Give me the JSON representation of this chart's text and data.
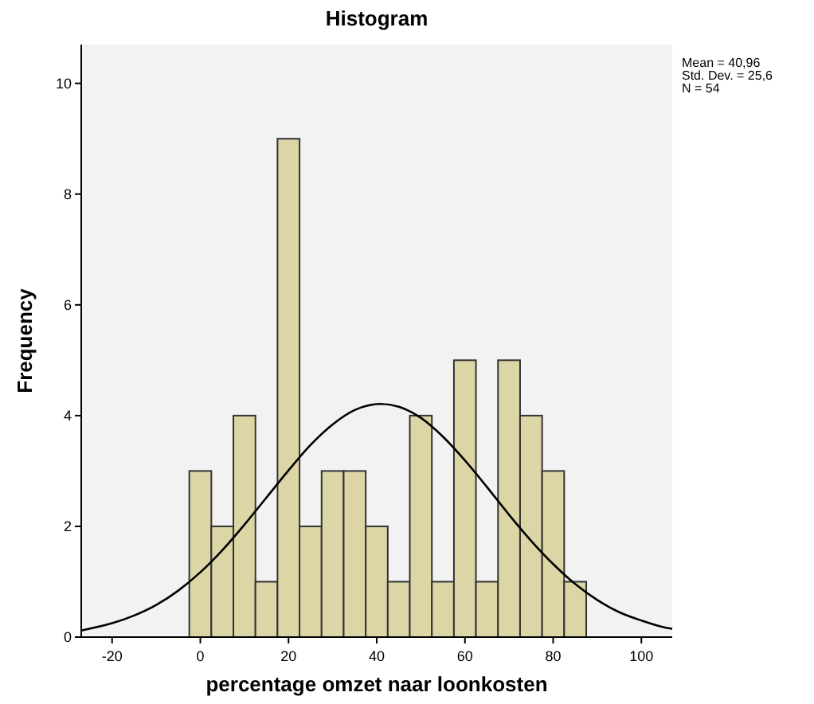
{
  "chart_data": {
    "type": "histogram",
    "title": "Histogram",
    "xlabel": "percentage omzet naar loonkosten",
    "ylabel": "Frequency",
    "bins": [
      -2.5,
      2.5,
      7.5,
      12.5,
      17.5,
      22.5,
      27.5,
      32.5,
      37.5,
      42.5,
      47.5,
      52.5,
      57.5,
      62.5,
      67.5,
      72.5,
      77.5,
      82.5,
      87.5
    ],
    "values": [
      3,
      2,
      4,
      1,
      9,
      2,
      3,
      3,
      2,
      1,
      4,
      1,
      5,
      1,
      5,
      4,
      3,
      1
    ],
    "color": "#dcd6a6",
    "series": [
      {
        "type": "line",
        "color": "#000000",
        "x": [
          -27,
          -20,
          -15,
          -10,
          -5,
          0,
          5,
          10,
          15,
          20,
          25,
          30,
          35,
          40.96,
          45,
          50,
          55,
          60,
          65,
          70,
          75,
          80,
          85,
          90,
          95,
          100,
          105,
          107
        ],
        "values": [
          0.12,
          0.25,
          0.39,
          0.58,
          0.84,
          1.17,
          1.57,
          2.03,
          2.52,
          3.01,
          3.47,
          3.84,
          4.1,
          4.21,
          4.16,
          3.96,
          3.62,
          3.19,
          2.71,
          2.21,
          1.74,
          1.32,
          0.96,
          0.67,
          0.45,
          0.3,
          0.18,
          0.15
        ]
      }
    ],
    "xlim": [
      -27,
      107
    ],
    "ylim": [
      0,
      10.7
    ],
    "xticks": [
      -20,
      0,
      20,
      40,
      60,
      80,
      100
    ],
    "yticks": [
      0,
      2,
      4,
      6,
      8,
      10
    ],
    "annotations": [
      "Mean = 40,96",
      "Std. Dev. = 25,6",
      "N = 54"
    ]
  }
}
